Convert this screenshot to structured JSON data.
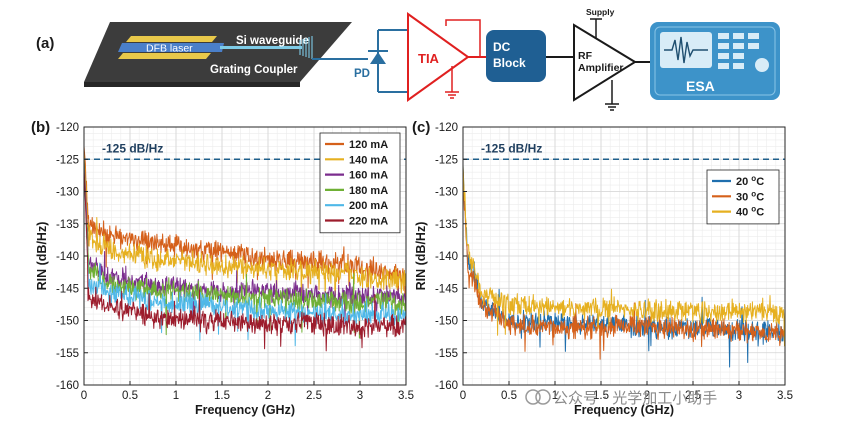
{
  "diagram": {
    "panel_label": "(a)",
    "dfb_laser": "DFB laser",
    "si_waveguide": "Si waveguide",
    "grating_coupler": "Grating Coupler",
    "pd": "PD",
    "tia": "TIA",
    "dc_block_line1": "DC",
    "dc_block_line2": "Block",
    "supply": "Supply",
    "rf_amp_line1": "RF",
    "rf_amp_line2": "Amplifier",
    "esa": "ESA",
    "colors": {
      "laser_blue": "#4a7fc9",
      "pcb_gold": "#e8c84a",
      "chip_dark": "#3c3c3c",
      "tia_red": "#e02020",
      "block_blue": "#1f5f93",
      "esa_blue": "#3d93c9",
      "wire_blue": "#2a6fa0"
    }
  },
  "watermark": "公众号 · 光学加工小助手",
  "chart_data": [
    {
      "panel_label": "(b)",
      "type": "line",
      "xlabel": "Frequency (GHz)",
      "ylabel": "RIN (dB/Hz)",
      "xlim": [
        0,
        3.5
      ],
      "ylim": [
        -160,
        -120
      ],
      "xticks": [
        0,
        0.5,
        1,
        1.5,
        2,
        2.5,
        3,
        3.5
      ],
      "xtick_labels": [
        "0",
        "0.5",
        "1",
        "1.5",
        "2",
        "2.5",
        "3",
        "3.5"
      ],
      "yticks": [
        -160,
        -155,
        -150,
        -145,
        -140,
        -135,
        -130,
        -125,
        -120
      ],
      "ytick_labels": [
        "-160",
        "-155",
        "-150",
        "-145",
        "-140",
        "-135",
        "-130",
        "-125",
        "-120"
      ],
      "grid": true,
      "reference_line": {
        "y": -125,
        "label": "-125 dB/Hz",
        "color": "#1f5f8b"
      },
      "legend_position": "top-right",
      "series": [
        {
          "name": "120 mA",
          "color": "#d5601a",
          "start": -123,
          "x": [
            0.05,
            0.3,
            0.8,
            1.5,
            2.0,
            2.5,
            3.0,
            3.5
          ],
          "values": [
            -135,
            -137,
            -138,
            -139.5,
            -140.5,
            -141,
            -141.5,
            -143
          ]
        },
        {
          "name": "140 mA",
          "color": "#e6b020",
          "start": -124,
          "x": [
            0.05,
            0.3,
            0.8,
            1.5,
            2.0,
            2.5,
            3.0,
            3.5
          ],
          "values": [
            -137,
            -139,
            -140.5,
            -141.5,
            -142,
            -142.5,
            -143,
            -144
          ]
        },
        {
          "name": "160 mA",
          "color": "#7b2d8e",
          "start": -125,
          "x": [
            0.05,
            0.3,
            0.8,
            1.5,
            2.0,
            2.5,
            3.0,
            3.5
          ],
          "values": [
            -141,
            -143.5,
            -144.5,
            -145.5,
            -145.5,
            -146,
            -146,
            -146.5
          ]
        },
        {
          "name": "180 mA",
          "color": "#6fb035",
          "start": -125,
          "x": [
            0.05,
            0.3,
            0.8,
            1.5,
            2.0,
            2.5,
            3.0,
            3.5
          ],
          "values": [
            -142,
            -144.5,
            -145.5,
            -146,
            -146.5,
            -147,
            -147,
            -147.5
          ]
        },
        {
          "name": "200 mA",
          "color": "#4fb8e8",
          "start": -126,
          "x": [
            0.05,
            0.3,
            0.8,
            1.5,
            2.0,
            2.5,
            3.0,
            3.5
          ],
          "values": [
            -144,
            -146,
            -147,
            -148,
            -148.5,
            -149,
            -149,
            -149
          ]
        },
        {
          "name": "220 mA",
          "color": "#9c1c2c",
          "start": -126,
          "x": [
            0.05,
            0.3,
            0.8,
            1.5,
            2.0,
            2.5,
            3.0,
            3.5
          ],
          "values": [
            -146,
            -148,
            -149.5,
            -150,
            -150.5,
            -150.5,
            -151,
            -151
          ]
        }
      ]
    },
    {
      "panel_label": "(c)",
      "type": "line",
      "xlabel": "Frequency (GHz)",
      "ylabel": "RIN (dB/Hz)",
      "xlim": [
        0,
        3.5
      ],
      "ylim": [
        -160,
        -120
      ],
      "xticks": [
        0,
        0.5,
        1,
        1.5,
        2,
        2.5,
        3,
        3.5
      ],
      "xtick_labels": [
        "0",
        "0.5",
        "1",
        "1.5",
        "2",
        "2.5",
        "3",
        "3.5"
      ],
      "yticks": [
        -160,
        -155,
        -150,
        -145,
        -140,
        -135,
        -130,
        -125,
        -120
      ],
      "ytick_labels": [
        "-160",
        "-155",
        "-150",
        "-145",
        "-140",
        "-135",
        "-130",
        "-125",
        "-120"
      ],
      "grid": true,
      "reference_line": {
        "y": -125,
        "label": "-125 dB/Hz",
        "color": "#1f5f8b"
      },
      "legend_position": "top-right",
      "legend_unit": "C",
      "legend_superscript": "o",
      "series": [
        {
          "name": "20",
          "color": "#1f6fae",
          "start": -126,
          "x": [
            0.05,
            0.2,
            0.5,
            1.0,
            1.5,
            2.0,
            2.5,
            3.0,
            3.5
          ],
          "values": [
            -140,
            -147,
            -150,
            -150.5,
            -150.5,
            -151,
            -151,
            -151.5,
            -152
          ]
        },
        {
          "name": "30",
          "color": "#d5601a",
          "start": -126.5,
          "x": [
            0.05,
            0.2,
            0.5,
            1.0,
            1.5,
            2.0,
            2.5,
            3.0,
            3.5
          ],
          "values": [
            -141,
            -147.5,
            -150.5,
            -151,
            -151,
            -151,
            -151.5,
            -151.5,
            -152
          ]
        },
        {
          "name": "40",
          "color": "#e6b020",
          "start": -126,
          "x": [
            0.05,
            0.2,
            0.5,
            1.0,
            1.5,
            2.0,
            2.5,
            3.0,
            3.5
          ],
          "values": [
            -139,
            -146,
            -147.5,
            -148,
            -148,
            -148.5,
            -148.5,
            -148.5,
            -149
          ]
        }
      ]
    }
  ]
}
